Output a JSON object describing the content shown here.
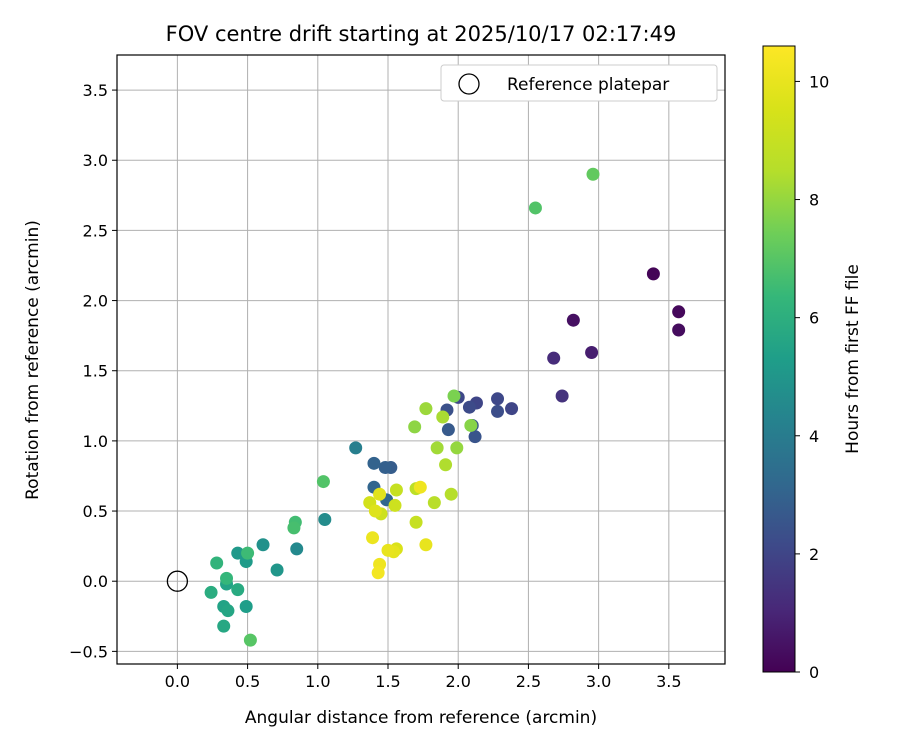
{
  "chart_data": {
    "type": "scatter",
    "title": "FOV centre drift starting at 2025/10/17 02:17:49",
    "xlabel": "Angular distance from reference (arcmin)",
    "ylabel": "Rotation from reference (arcmin)",
    "xlim": [
      -0.43,
      3.9
    ],
    "ylim": [
      -0.59,
      3.75
    ],
    "xticks": [
      "0.0",
      "0.5",
      "1.0",
      "1.5",
      "2.0",
      "2.5",
      "3.0",
      "3.5"
    ],
    "yticks": [
      "−0.5",
      "0.0",
      "0.5",
      "1.0",
      "1.5",
      "2.0",
      "2.5",
      "3.0",
      "3.5"
    ],
    "grid": true,
    "legend": {
      "placement": "top-right",
      "entries": [
        "Reference platepar"
      ]
    },
    "reference_point": {
      "x": 0.0,
      "y": 0.0
    },
    "colorbar": {
      "label": "Hours from first FF file",
      "colormap": "viridis",
      "range": [
        0,
        10.6
      ],
      "ticks": [
        "0",
        "2",
        "4",
        "6",
        "8",
        "10"
      ]
    },
    "points": [
      {
        "x": 3.39,
        "y": 2.19,
        "h": 0.1
      },
      {
        "x": 3.57,
        "y": 1.92,
        "h": 0.2
      },
      {
        "x": 3.57,
        "y": 1.79,
        "h": 0.3
      },
      {
        "x": 2.82,
        "y": 1.86,
        "h": 0.4
      },
      {
        "x": 2.95,
        "y": 1.63,
        "h": 0.8
      },
      {
        "x": 2.68,
        "y": 1.59,
        "h": 1.2
      },
      {
        "x": 2.74,
        "y": 1.32,
        "h": 1.4
      },
      {
        "x": 2.38,
        "y": 1.23,
        "h": 2.0
      },
      {
        "x": 2.28,
        "y": 1.3,
        "h": 2.1
      },
      {
        "x": 2.28,
        "y": 1.21,
        "h": 2.3
      },
      {
        "x": 2.13,
        "y": 1.27,
        "h": 2.0
      },
      {
        "x": 2.08,
        "y": 1.24,
        "h": 2.2
      },
      {
        "x": 2.12,
        "y": 1.03,
        "h": 2.5
      },
      {
        "x": 2.1,
        "y": 1.11,
        "h": 2.6
      },
      {
        "x": 2.0,
        "y": 1.31,
        "h": 2.1
      },
      {
        "x": 1.92,
        "y": 1.22,
        "h": 2.4
      },
      {
        "x": 1.93,
        "y": 1.08,
        "h": 2.7
      },
      {
        "x": 1.52,
        "y": 0.81,
        "h": 2.8
      },
      {
        "x": 1.48,
        "y": 0.81,
        "h": 2.9
      },
      {
        "x": 1.4,
        "y": 0.84,
        "h": 3.0
      },
      {
        "x": 1.4,
        "y": 0.67,
        "h": 3.1
      },
      {
        "x": 1.49,
        "y": 0.58,
        "h": 3.2
      },
      {
        "x": 1.27,
        "y": 0.95,
        "h": 4.1
      },
      {
        "x": 1.05,
        "y": 0.44,
        "h": 4.6
      },
      {
        "x": 0.85,
        "y": 0.23,
        "h": 4.5
      },
      {
        "x": 0.61,
        "y": 0.26,
        "h": 4.8
      },
      {
        "x": 0.71,
        "y": 0.08,
        "h": 5.0
      },
      {
        "x": 0.43,
        "y": 0.2,
        "h": 5.1
      },
      {
        "x": 0.49,
        "y": 0.14,
        "h": 5.2
      },
      {
        "x": 0.49,
        "y": -0.18,
        "h": 5.3
      },
      {
        "x": 0.35,
        "y": -0.02,
        "h": 5.5
      },
      {
        "x": 0.33,
        "y": -0.18,
        "h": 5.5
      },
      {
        "x": 0.36,
        "y": -0.21,
        "h": 5.6
      },
      {
        "x": 0.33,
        "y": -0.32,
        "h": 5.7
      },
      {
        "x": 0.43,
        "y": -0.06,
        "h": 5.8
      },
      {
        "x": 0.24,
        "y": -0.08,
        "h": 5.9
      },
      {
        "x": 0.28,
        "y": 0.13,
        "h": 6.2
      },
      {
        "x": 0.35,
        "y": 0.02,
        "h": 6.3
      },
      {
        "x": 0.5,
        "y": 0.2,
        "h": 6.5
      },
      {
        "x": 0.84,
        "y": 0.42,
        "h": 6.6
      },
      {
        "x": 0.83,
        "y": 0.38,
        "h": 6.7
      },
      {
        "x": 1.04,
        "y": 0.71,
        "h": 6.9
      },
      {
        "x": 0.52,
        "y": -0.42,
        "h": 7.0
      },
      {
        "x": 2.55,
        "y": 2.66,
        "h": 6.9
      },
      {
        "x": 2.96,
        "y": 2.9,
        "h": 7.2
      },
      {
        "x": 1.97,
        "y": 1.32,
        "h": 7.6
      },
      {
        "x": 2.09,
        "y": 1.11,
        "h": 7.8
      },
      {
        "x": 1.69,
        "y": 1.1,
        "h": 7.9
      },
      {
        "x": 1.77,
        "y": 1.23,
        "h": 8.1
      },
      {
        "x": 1.99,
        "y": 0.95,
        "h": 8.0
      },
      {
        "x": 1.85,
        "y": 0.95,
        "h": 8.2
      },
      {
        "x": 1.89,
        "y": 1.17,
        "h": 8.3
      },
      {
        "x": 1.91,
        "y": 0.83,
        "h": 8.4
      },
      {
        "x": 1.95,
        "y": 0.62,
        "h": 8.5
      },
      {
        "x": 1.83,
        "y": 0.56,
        "h": 8.6
      },
      {
        "x": 1.7,
        "y": 0.66,
        "h": 8.7
      },
      {
        "x": 1.7,
        "y": 0.42,
        "h": 9.0
      },
      {
        "x": 1.56,
        "y": 0.65,
        "h": 9.0
      },
      {
        "x": 1.55,
        "y": 0.54,
        "h": 9.2
      },
      {
        "x": 1.45,
        "y": 0.48,
        "h": 9.2
      },
      {
        "x": 1.37,
        "y": 0.56,
        "h": 9.4
      },
      {
        "x": 1.41,
        "y": 0.5,
        "h": 9.7
      },
      {
        "x": 1.44,
        "y": 0.62,
        "h": 9.8
      },
      {
        "x": 1.73,
        "y": 0.67,
        "h": 10.2
      },
      {
        "x": 1.56,
        "y": 0.23,
        "h": 9.6
      },
      {
        "x": 1.54,
        "y": 0.21,
        "h": 9.9
      },
      {
        "x": 1.5,
        "y": 0.22,
        "h": 10.0
      },
      {
        "x": 1.39,
        "y": 0.31,
        "h": 10.1
      },
      {
        "x": 1.44,
        "y": 0.12,
        "h": 10.2
      },
      {
        "x": 1.43,
        "y": 0.06,
        "h": 10.3
      },
      {
        "x": 1.77,
        "y": 0.26,
        "h": 10.0
      }
    ]
  }
}
